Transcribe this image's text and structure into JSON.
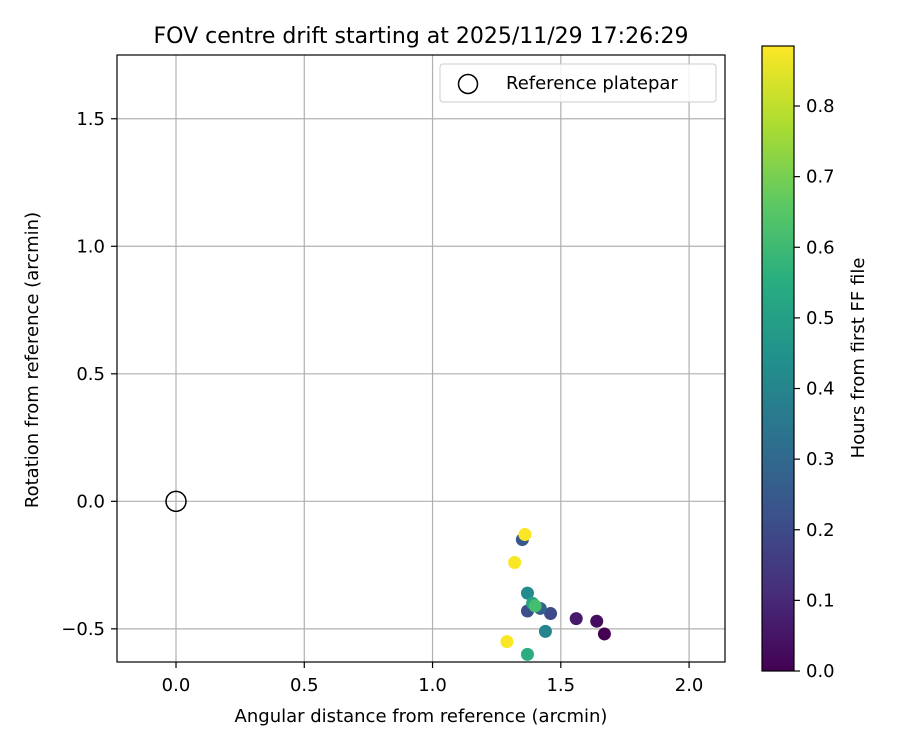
{
  "chart_data": {
    "type": "scatter",
    "title": "FOV centre drift starting at 2025/11/29 17:26:29",
    "xlabel": "Angular distance from reference (arcmin)",
    "ylabel": "Rotation from reference (arcmin)",
    "xlim": [
      -0.23,
      2.14
    ],
    "ylim": [
      -0.63,
      1.75
    ],
    "xticks": [
      0.0,
      0.5,
      1.0,
      1.5,
      2.0
    ],
    "xtick_labels": [
      "0.0",
      "0.5",
      "1.0",
      "1.5",
      "2.0"
    ],
    "yticks": [
      -0.5,
      0.0,
      0.5,
      1.0,
      1.5
    ],
    "ytick_labels": [
      "−0.5",
      "0.0",
      "0.5",
      "1.0",
      "1.5"
    ],
    "grid": true,
    "legend": {
      "location": "upper right",
      "entries": [
        "Reference platepar"
      ]
    },
    "reference_point": {
      "x": 0.0,
      "y": 0.0,
      "label": "Reference platepar"
    },
    "colorbar": {
      "label": "Hours from first FF file",
      "colormap": "viridis",
      "range": [
        0.0,
        0.885
      ],
      "ticks": [
        0.0,
        0.1,
        0.2,
        0.3,
        0.4,
        0.5,
        0.6,
        0.7,
        0.8
      ],
      "tick_labels": [
        "0.0",
        "0.1",
        "0.2",
        "0.3",
        "0.4",
        "0.5",
        "0.6",
        "0.7",
        "0.8"
      ]
    },
    "points": [
      {
        "x": 1.67,
        "y": -0.52,
        "hours": 0.0
      },
      {
        "x": 1.64,
        "y": -0.47,
        "hours": 0.03
      },
      {
        "x": 1.56,
        "y": -0.46,
        "hours": 0.06
      },
      {
        "x": 1.46,
        "y": -0.44,
        "hours": 0.2
      },
      {
        "x": 1.37,
        "y": -0.43,
        "hours": 0.22
      },
      {
        "x": 1.35,
        "y": -0.15,
        "hours": 0.24
      },
      {
        "x": 1.42,
        "y": -0.42,
        "hours": 0.28
      },
      {
        "x": 1.44,
        "y": -0.51,
        "hours": 0.4
      },
      {
        "x": 1.37,
        "y": -0.36,
        "hours": 0.42
      },
      {
        "x": 1.39,
        "y": -0.4,
        "hours": 0.52
      },
      {
        "x": 1.37,
        "y": -0.6,
        "hours": 0.55
      },
      {
        "x": 1.4,
        "y": -0.41,
        "hours": 0.62
      },
      {
        "x": 1.29,
        "y": -0.55,
        "hours": 0.88
      },
      {
        "x": 1.32,
        "y": -0.24,
        "hours": 0.88
      },
      {
        "x": 1.36,
        "y": -0.13,
        "hours": 0.88
      }
    ]
  }
}
